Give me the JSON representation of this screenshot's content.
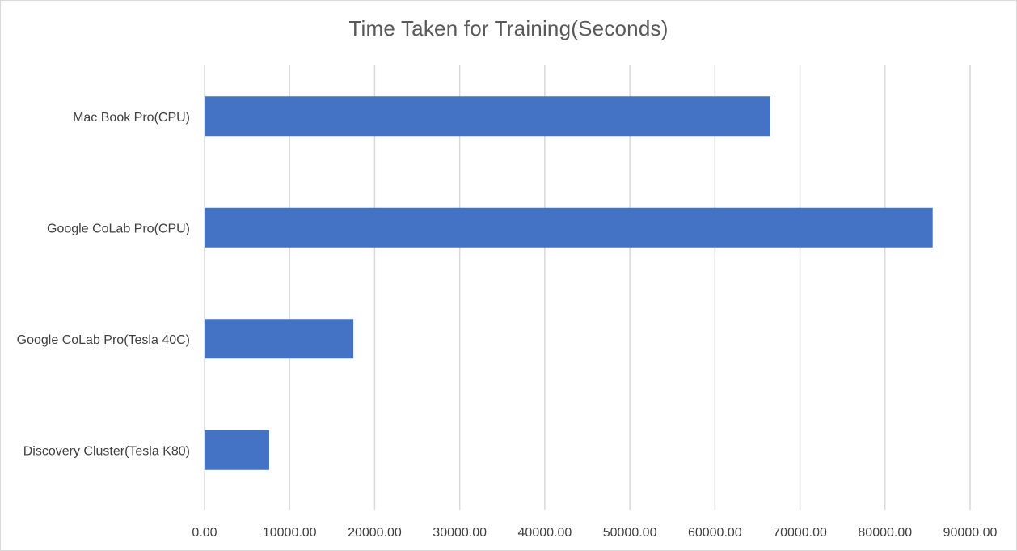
{
  "chart_data": {
    "type": "bar",
    "orientation": "horizontal",
    "title": "Time Taken for Training(Seconds)",
    "xlabel": "",
    "ylabel": "",
    "categories": [
      "Mac Book Pro(CPU)",
      "Google CoLab Pro(CPU)",
      "Google CoLab Pro(Tesla 40C)",
      "Discovery Cluster(Tesla K80)"
    ],
    "series": [
      {
        "values": [
          66500,
          85600,
          17500,
          7600
        ]
      }
    ],
    "xlim": [
      0,
      90000
    ],
    "xticks": [
      0,
      10000,
      20000,
      30000,
      40000,
      50000,
      60000,
      70000,
      80000,
      90000
    ],
    "xtick_labels": [
      "0.00",
      "10000.00",
      "20000.00",
      "30000.00",
      "40000.00",
      "50000.00",
      "60000.00",
      "70000.00",
      "80000.00",
      "90000.00"
    ],
    "grid": true,
    "legend": "none",
    "bar_color": "#4472c4",
    "grid_color": "#d9d9d9"
  }
}
